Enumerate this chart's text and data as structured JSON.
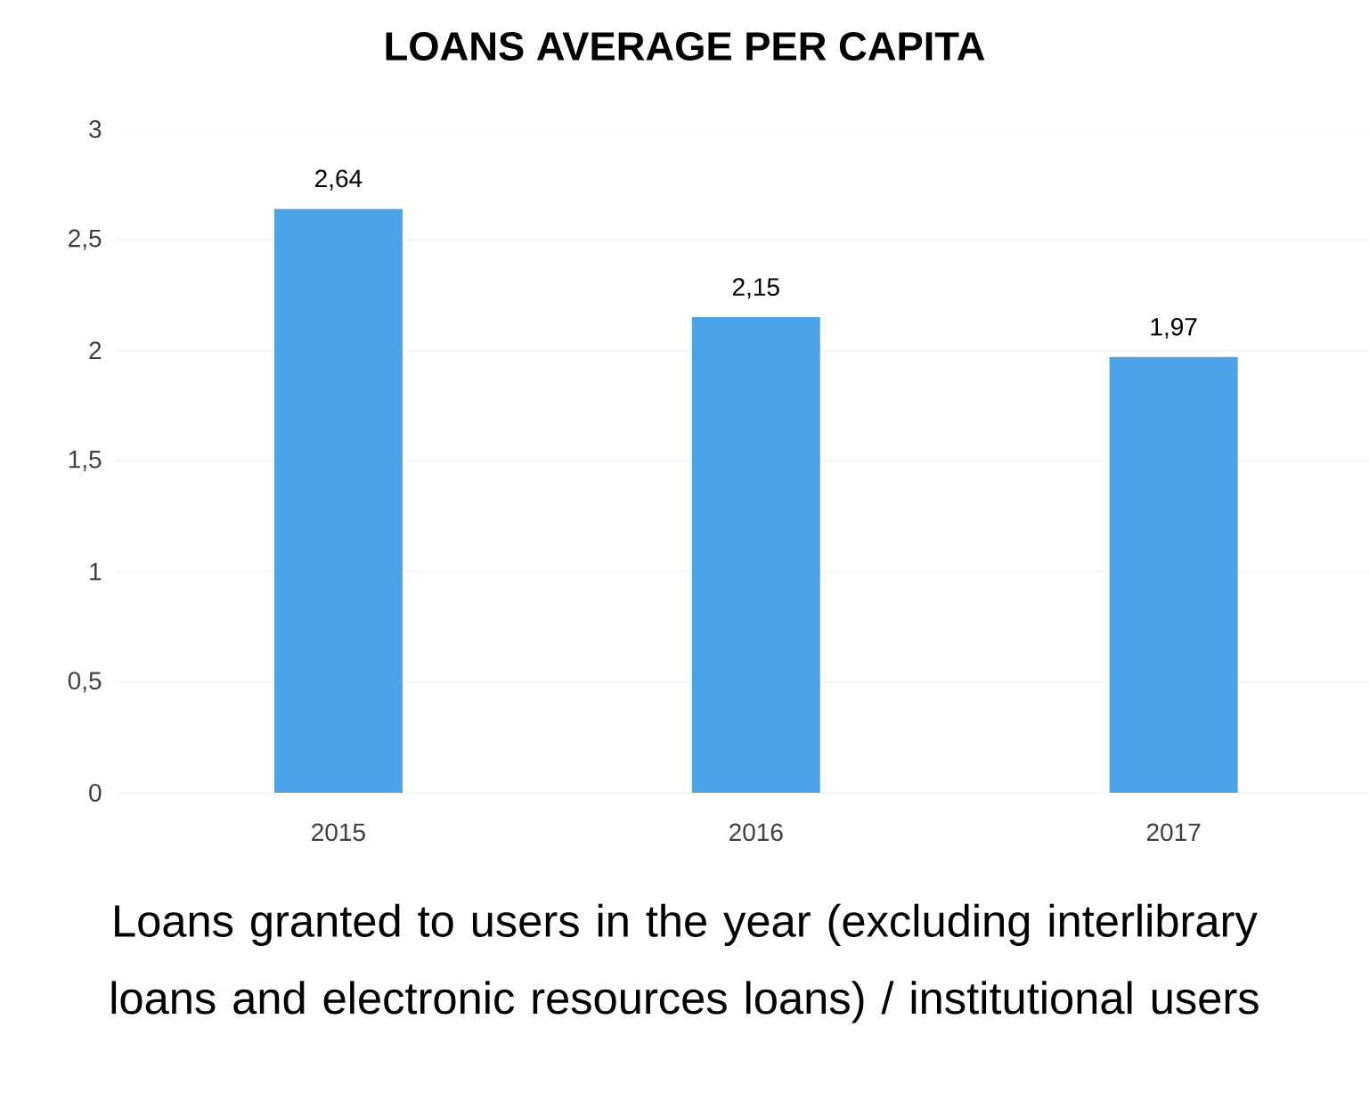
{
  "chart_data": {
    "type": "bar",
    "title": "LOANS AVERAGE PER CAPITA",
    "categories": [
      "2015",
      "2016",
      "2017"
    ],
    "values": [
      2.64,
      2.15,
      1.97
    ],
    "value_labels": [
      "2,64",
      "2,15",
      "1,97"
    ],
    "color": "#4da3e8",
    "ylim": [
      0,
      3
    ],
    "yticks": [
      0,
      {
        "value": 0.5,
        "label": "0,5"
      },
      1,
      {
        "value": 1.5,
        "label": "1,5"
      },
      2,
      {
        "value": 2.5,
        "label": "2,5"
      },
      3
    ],
    "grid": "y",
    "annotations": [
      "Loans granted to users in the year (excluding interlibrary loans and electronic resources loans) / institutional users"
    ]
  }
}
